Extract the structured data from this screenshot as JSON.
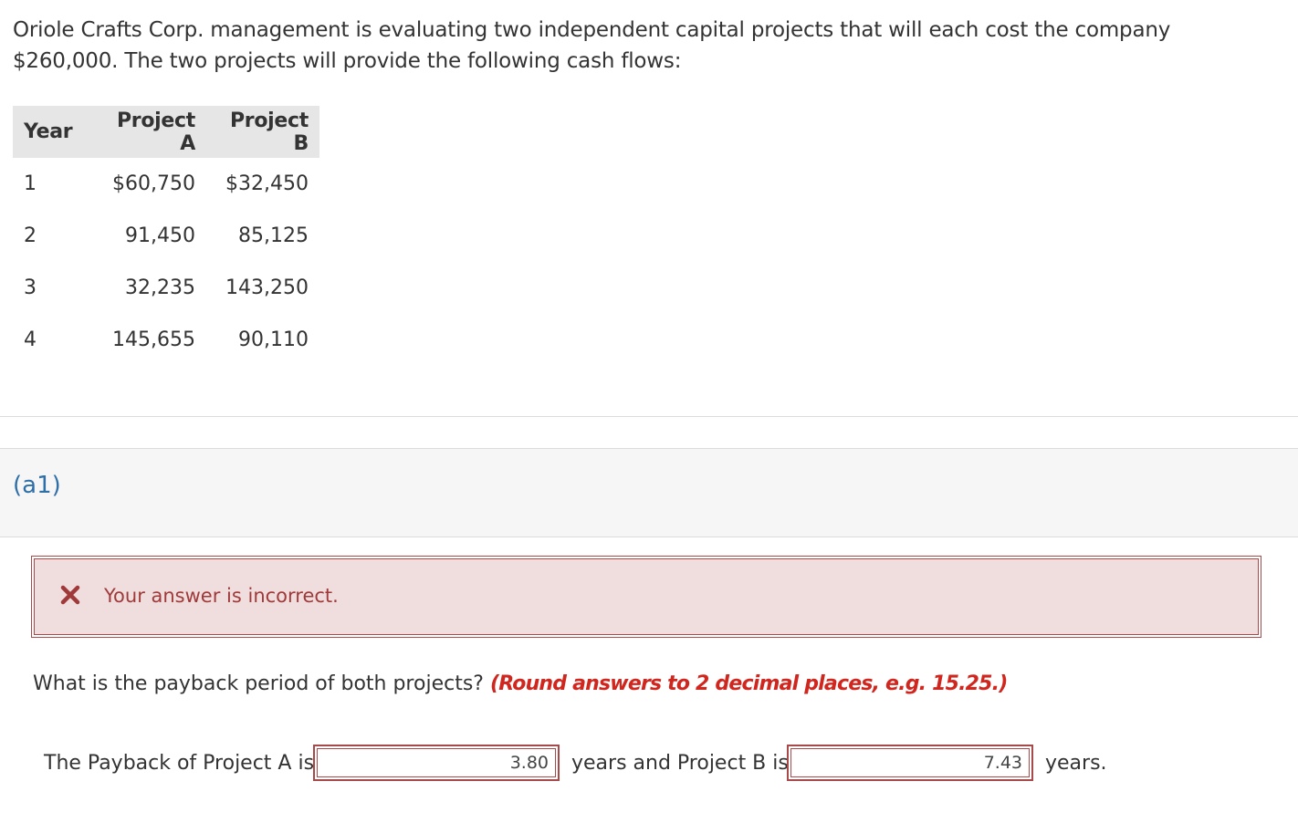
{
  "intro_text": "Oriole Crafts Corp. management is evaluating two independent capital projects that will each cost the company $260,000. The two projects will provide the following cash flows:",
  "table": {
    "headers": [
      "Year",
      "Project A",
      "Project B"
    ],
    "rows": [
      [
        "1",
        "$60,750",
        "$32,450"
      ],
      [
        "2",
        "91,450",
        "85,125"
      ],
      [
        "3",
        "32,235",
        "143,250"
      ],
      [
        "4",
        "145,655",
        "90,110"
      ]
    ]
  },
  "section_label": "(a1)",
  "feedback": {
    "message": "Your answer is incorrect.",
    "icon": "close-icon",
    "color": "#a03a3a"
  },
  "question": {
    "text": "What is the payback period of both projects? ",
    "hint": "(Round answers to 2 decimal places, e.g. 15.25.)"
  },
  "answer": {
    "prefix_a": "The Payback of Project A is",
    "value_a": "3.80",
    "middle": "years and Project B is",
    "value_b": "7.43",
    "suffix": "years."
  },
  "colors": {
    "accent": "#2e6fa8",
    "error_border": "#a84a4a",
    "error_bg": "#f0dede",
    "hint": "#d0261e"
  }
}
